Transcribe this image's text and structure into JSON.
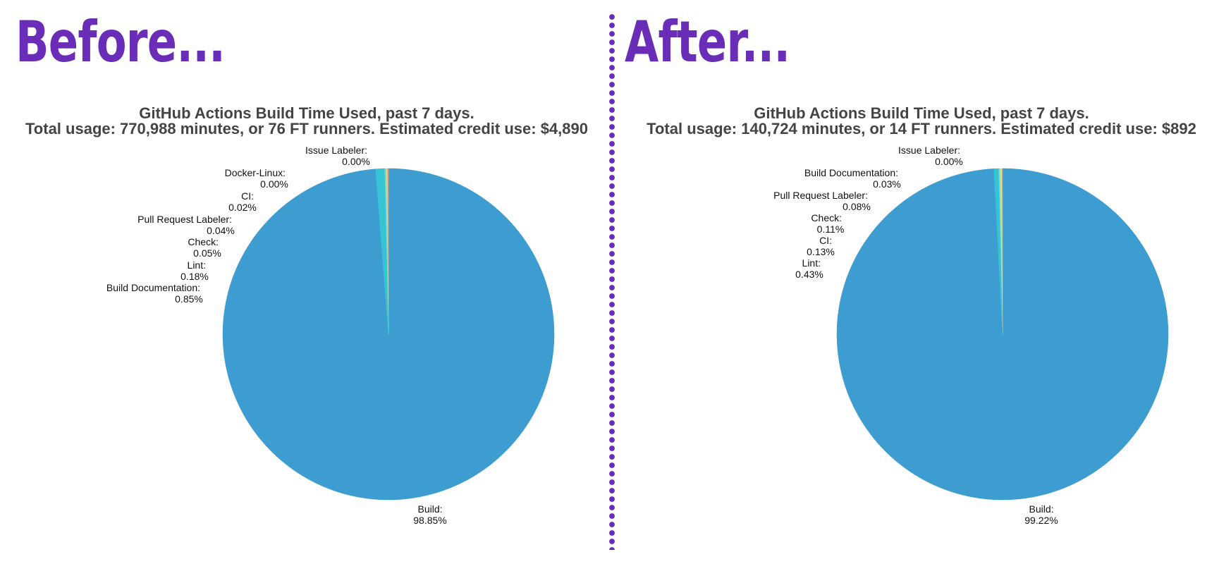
{
  "headings": {
    "before": "Before...",
    "after": "After..."
  },
  "chart_data": [
    {
      "type": "pie",
      "title": "GitHub Actions Build Time Used, past 7 days.",
      "subtitle": "Total usage: 770,988 minutes, or 76 FT runners. Estimated credit use: $4,890",
      "slices": [
        {
          "name": "Issue Labeler:",
          "pct_label": "0.00%",
          "value": 0.0,
          "color": "#f6b26b"
        },
        {
          "name": "Docker-Linux:",
          "pct_label": "0.00%",
          "value": 0.0,
          "color": "#e07070"
        },
        {
          "name": "CI:",
          "pct_label": "0.02%",
          "value": 0.02,
          "color": "#8fd0a8"
        },
        {
          "name": "Pull Request Labeler:",
          "pct_label": "0.04%",
          "value": 0.04,
          "color": "#b9e3a1"
        },
        {
          "name": "Check:",
          "pct_label": "0.05%",
          "value": 0.05,
          "color": "#f2e28a"
        },
        {
          "name": "Lint:",
          "pct_label": "0.18%",
          "value": 0.18,
          "color": "#7fd6c9"
        },
        {
          "name": "Build Documentation:",
          "pct_label": "0.85%",
          "value": 0.85,
          "color": "#35c3d6"
        },
        {
          "name": "Build:",
          "pct_label": "98.85%",
          "value": 98.85,
          "color": "#3d9dd1"
        }
      ]
    },
    {
      "type": "pie",
      "title": "GitHub Actions Build Time Used, past 7 days.",
      "subtitle": "Total usage: 140,724 minutes, or 14 FT runners. Estimated credit use: $892",
      "slices": [
        {
          "name": "Issue Labeler:",
          "pct_label": "0.00%",
          "value": 0.0,
          "color": "#f6b26b"
        },
        {
          "name": "Build Documentation:",
          "pct_label": "0.03%",
          "value": 0.03,
          "color": "#e07070"
        },
        {
          "name": "Pull Request Labeler:",
          "pct_label": "0.08%",
          "value": 0.08,
          "color": "#f2e28a"
        },
        {
          "name": "Check:",
          "pct_label": "0.11%",
          "value": 0.11,
          "color": "#b9e3a1"
        },
        {
          "name": "CI:",
          "pct_label": "0.13%",
          "value": 0.13,
          "color": "#7fd6c9"
        },
        {
          "name": "Lint:",
          "pct_label": "0.43%",
          "value": 0.43,
          "color": "#35c3d6"
        },
        {
          "name": "Build:",
          "pct_label": "99.22%",
          "value": 99.22,
          "color": "#3d9dd1"
        }
      ]
    }
  ]
}
